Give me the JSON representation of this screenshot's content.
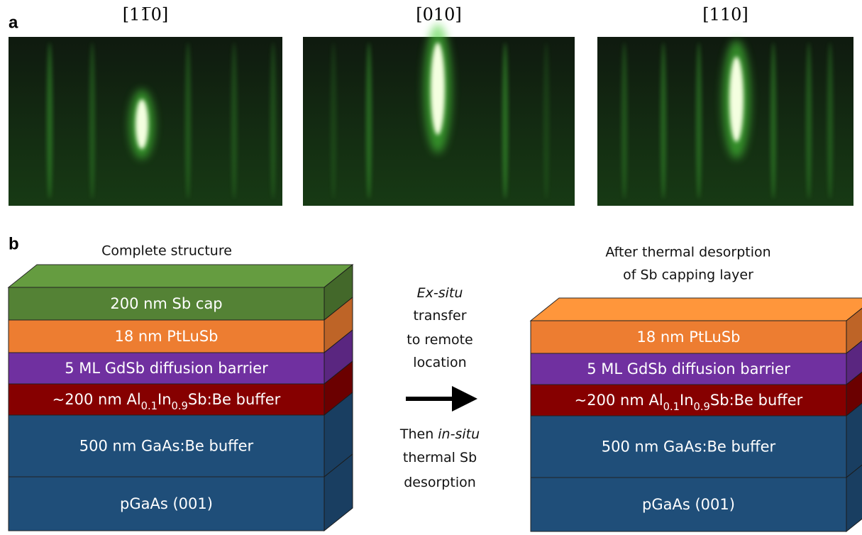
{
  "panel_a": {
    "label": "a",
    "images": [
      {
        "title": "[11̅0]"
      },
      {
        "title": "[010]"
      },
      {
        "title": "[110]"
      }
    ]
  },
  "panel_b": {
    "label": "b",
    "left": {
      "title": "Complete structure",
      "layers": [
        {
          "color": "#548235",
          "parts": [
            {
              "text": "200 nm Sb cap"
            }
          ]
        },
        {
          "color": "#ed7d31",
          "parts": [
            {
              "text": "18 nm PtLuSb"
            }
          ]
        },
        {
          "color": "#7030a0",
          "parts": [
            {
              "text": "5 ML GdSb diffusion barrier"
            }
          ]
        },
        {
          "color": "#860000",
          "parts": [
            {
              "text": "~200 nm Al"
            },
            {
              "text": "0.1",
              "sub": true
            },
            {
              "text": "In"
            },
            {
              "text": "0.9",
              "sub": true
            },
            {
              "text": "Sb:Be buffer"
            }
          ]
        },
        {
          "color": "#1f4e79",
          "parts": [
            {
              "text": "500 nm GaAs:Be buffer"
            }
          ]
        },
        {
          "color": "#1f4e79",
          "parts": [
            {
              "text": "pGaAs (001)"
            }
          ]
        }
      ]
    },
    "middle": {
      "before": [
        [
          {
            "text": "Ex-situ",
            "italic": true
          }
        ],
        [
          {
            "text": "transfer"
          }
        ],
        [
          {
            "text": "to remote"
          }
        ],
        [
          {
            "text": "location"
          }
        ]
      ],
      "after": [
        [
          {
            "text": "Then "
          },
          {
            "text": "in-situ",
            "italic": true
          }
        ],
        [
          {
            "text": "thermal Sb"
          }
        ],
        [
          {
            "text": "desorption"
          }
        ]
      ]
    },
    "right": {
      "title_lines": [
        "After thermal desorption",
        "of Sb capping layer"
      ],
      "layers": [
        {
          "color": "#ed7d31",
          "parts": [
            {
              "text": "18 nm PtLuSb"
            }
          ]
        },
        {
          "color": "#7030a0",
          "parts": [
            {
              "text": "5 ML GdSb diffusion barrier"
            }
          ]
        },
        {
          "color": "#860000",
          "parts": [
            {
              "text": "~200 nm Al"
            },
            {
              "text": "0.1",
              "sub": true
            },
            {
              "text": "In"
            },
            {
              "text": "0.9",
              "sub": true
            },
            {
              "text": "Sb:Be buffer"
            }
          ]
        },
        {
          "color": "#1f4e79",
          "parts": [
            {
              "text": "500 nm GaAs:Be buffer"
            }
          ]
        },
        {
          "color": "#1f4e79",
          "parts": [
            {
              "text": "pGaAs (001)"
            }
          ]
        }
      ]
    }
  }
}
